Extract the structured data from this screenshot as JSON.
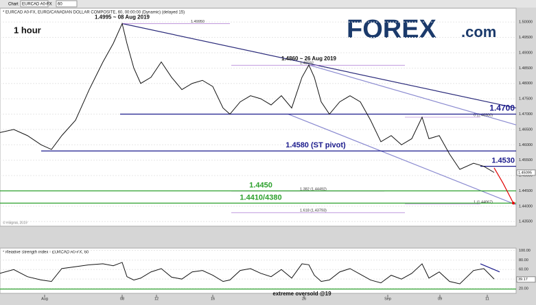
{
  "toolbar": {
    "tab": "Chart",
    "symbol": "EURCAD A0-FX",
    "interval": "60"
  },
  "logo": {
    "brand": "FOREX",
    "suffix": ".com"
  },
  "chart_data": [
    {
      "type": "line",
      "title": "1 hour",
      "subtitle": "* EURCAD A0-FX, EURO/CANADIAN DOLLAR COMPOSITE, 60, 00:00:00 (Dynamic) (delayed 15)",
      "credit": "© eSignal, 2019",
      "x": [
        0,
        20,
        40,
        60,
        75,
        90,
        110,
        130,
        150,
        165,
        178,
        185,
        195,
        205,
        220,
        235,
        250,
        265,
        280,
        295,
        310,
        325,
        335,
        350,
        365,
        380,
        395,
        410,
        425,
        440,
        450,
        458,
        468,
        480,
        495,
        510,
        525,
        540,
        555,
        570,
        585,
        600,
        615,
        625,
        640,
        655,
        670,
        690,
        705,
        720
      ],
      "values": [
        1.464,
        1.465,
        1.463,
        1.46,
        1.4585,
        1.463,
        1.468,
        1.478,
        1.487,
        1.493,
        1.4995,
        1.493,
        1.485,
        1.48,
        1.482,
        1.487,
        1.482,
        1.478,
        1.48,
        1.481,
        1.479,
        1.472,
        1.47,
        1.474,
        1.476,
        1.475,
        1.473,
        1.476,
        1.472,
        1.482,
        1.486,
        1.482,
        1.474,
        1.47,
        1.474,
        1.476,
        1.474,
        1.468,
        1.461,
        1.463,
        1.46,
        1.462,
        1.469,
        1.462,
        1.463,
        1.457,
        1.452,
        1.454,
        1.453,
        1.451
      ],
      "color": "#111111",
      "xlim": [
        0,
        752
      ],
      "xticks": [
        {
          "value": 65,
          "label": "Aug"
        },
        {
          "value": 178,
          "label": "08"
        },
        {
          "value": 228,
          "label": "12"
        },
        {
          "value": 310,
          "label": "16"
        },
        {
          "value": 443,
          "label": "26"
        },
        {
          "value": 565,
          "label": "Sep"
        },
        {
          "value": 641,
          "label": "09"
        },
        {
          "value": 710,
          "label": "11"
        }
      ],
      "ylim": [
        1.4335,
        1.5045
      ],
      "yticks": [
        {
          "value": 1.5,
          "label": "1.50000"
        },
        {
          "value": 1.495,
          "label": "1.49500"
        },
        {
          "value": 1.49,
          "label": "1.49000"
        },
        {
          "value": 1.485,
          "label": "1.48500"
        },
        {
          "value": 1.48,
          "label": "1.48000"
        },
        {
          "value": 1.475,
          "label": "1.47500"
        },
        {
          "value": 1.47,
          "label": "1.47000"
        },
        {
          "value": 1.465,
          "label": "1.46500"
        },
        {
          "value": 1.46,
          "label": "1.46000"
        },
        {
          "value": 1.455,
          "label": "1.45500"
        },
        {
          "value": 1.45,
          "label": "1.45000"
        },
        {
          "value": 1.445,
          "label": "1.44500"
        },
        {
          "value": 1.44,
          "label": "1.44000"
        },
        {
          "value": 1.435,
          "label": "1.43500"
        }
      ],
      "last": {
        "value": 1.45095,
        "label": "1.45095"
      },
      "levels": [
        {
          "value": 1.47,
          "label": "1.4700",
          "color": "#1a1a8c",
          "xrange": [
            175,
            752
          ]
        },
        {
          "value": 1.458,
          "label": "1.4580 (ST pivot)",
          "color": "#1a1a8c",
          "xrange": [
            60,
            752
          ]
        },
        {
          "value": 1.453,
          "label": "1.4530",
          "color": "#1a1a8c",
          "xrange": [
            700,
            752
          ]
        },
        {
          "value": 1.445,
          "label": "1.4450",
          "color": "#2ca02c",
          "xrange": [
            0,
            752
          ]
        },
        {
          "value": 1.441,
          "label": "1.4410/4380",
          "color": "#2ca02c",
          "xrange": [
            0,
            752
          ]
        }
      ],
      "fib_levels": [
        {
          "value": 1.4995,
          "label": "1.49950",
          "xrange": [
            178,
            335
          ]
        },
        {
          "value": 1.48592,
          "label": "1.48592",
          "xrange": [
            337,
            590
          ]
        },
        {
          "value": 1.469,
          "label": "0 (1.46900)",
          "xrange": [
            590,
            700
          ]
        },
        {
          "value": 1.44492,
          "label": "1.382 (1.44492)",
          "xrange": [
            337,
            560
          ]
        },
        {
          "value": 1.44067,
          "label": "1 (1.44067)",
          "xrange": [
            590,
            700
          ]
        },
        {
          "value": 1.43793,
          "label": "1.618 (1.43793)",
          "xrange": [
            337,
            590
          ]
        }
      ],
      "annotations": [
        {
          "text": "1.4995 ~ 08 Aug 2019",
          "x": 178,
          "value": 1.4995
        },
        {
          "text": "1.4860 ~ 26 Aug 2019",
          "x": 450,
          "value": 1.486
        }
      ],
      "trendlines": [
        {
          "x": [
            178,
            752
          ],
          "values": [
            1.4995,
            1.472
          ],
          "color": "#2a2a7a"
        },
        {
          "x": [
            450,
            752
          ],
          "values": [
            1.486,
            1.4665
          ],
          "color": "#8a8ad0"
        },
        {
          "x": [
            420,
            752
          ],
          "values": [
            1.47,
            1.4405
          ],
          "color": "#8a8ad0"
        }
      ],
      "projection": {
        "x": [
          720,
          733,
          748
        ],
        "values": [
          1.4525,
          1.4475,
          1.441
        ],
        "color": "#e00000"
      }
    },
    {
      "type": "line",
      "title": "* Relative Strength Index - EURCAD A0-FX, 60",
      "x": [
        0,
        20,
        40,
        60,
        75,
        90,
        110,
        130,
        150,
        165,
        178,
        185,
        195,
        205,
        220,
        235,
        250,
        265,
        280,
        295,
        310,
        325,
        335,
        350,
        365,
        380,
        395,
        410,
        425,
        440,
        450,
        458,
        468,
        480,
        495,
        510,
        525,
        540,
        555,
        570,
        585,
        600,
        615,
        625,
        640,
        655,
        670,
        690,
        705,
        720
      ],
      "values": [
        52,
        60,
        45,
        38,
        35,
        62,
        66,
        70,
        72,
        68,
        75,
        45,
        38,
        42,
        55,
        62,
        44,
        40,
        55,
        58,
        48,
        35,
        38,
        58,
        62,
        52,
        45,
        60,
        42,
        72,
        70,
        48,
        35,
        38,
        55,
        62,
        50,
        38,
        32,
        48,
        40,
        52,
        72,
        42,
        55,
        35,
        30,
        58,
        62,
        40
      ],
      "color": "#111111",
      "xlim": [
        0,
        752
      ],
      "ylim": [
        10,
        105
      ],
      "yticks": [
        {
          "value": 100,
          "label": "100.00"
        },
        {
          "value": 80,
          "label": "80.00"
        },
        {
          "value": 60,
          "label": "60.00"
        },
        {
          "value": 40,
          "label": "40.00"
        },
        {
          "value": 20,
          "label": "20.00"
        }
      ],
      "last": {
        "value": 39.17,
        "label": "39.17"
      },
      "level": {
        "value": 19,
        "label": "extreme oversold @19",
        "color": "#2ca02c"
      },
      "trendline": {
        "x": [
          700,
          728
        ],
        "values": [
          72,
          55
        ],
        "color": "#1a1a8c"
      }
    }
  ]
}
